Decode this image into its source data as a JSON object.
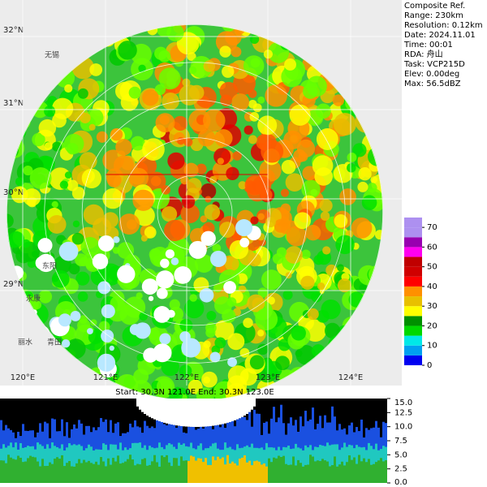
{
  "info": {
    "title": "Composite Ref.",
    "lines": [
      "Range: 230km",
      "Resolution: 0.12km",
      "Date: 2024.11.01",
      "Time: 00:01",
      "RDA: 舟山",
      "Task: VCP215D",
      "Elev: 0.00deg",
      "Max: 56.5dBZ"
    ]
  },
  "lat_labels": [
    "32°N",
    "31°N",
    "30°N",
    "29°N"
  ],
  "lon_labels": [
    "120°E",
    "121°E",
    "122°E",
    "123°E",
    "124°E"
  ],
  "place_labels": [
    "无锡",
    "东阳",
    "永康",
    "丽水",
    "青田"
  ],
  "colorbar": {
    "ticks": [
      0,
      10,
      20,
      30,
      40,
      50,
      60,
      70
    ],
    "lim": [
      0,
      75
    ]
  },
  "section": {
    "title": "Start: 30.3N 121.0E End: 30.3N 123.0E",
    "ylim": [
      0,
      15
    ],
    "yticks": [
      {
        "value": 0,
        "label": "0.0"
      },
      {
        "value": 2.5,
        "label": "2.5"
      },
      {
        "value": 5,
        "label": "5.0"
      },
      {
        "value": 7.5,
        "label": "7.5"
      },
      {
        "value": 10,
        "label": "10.0"
      },
      {
        "value": 12.5,
        "label": "12.5"
      },
      {
        "value": 15,
        "label": "15.0"
      }
    ]
  }
}
